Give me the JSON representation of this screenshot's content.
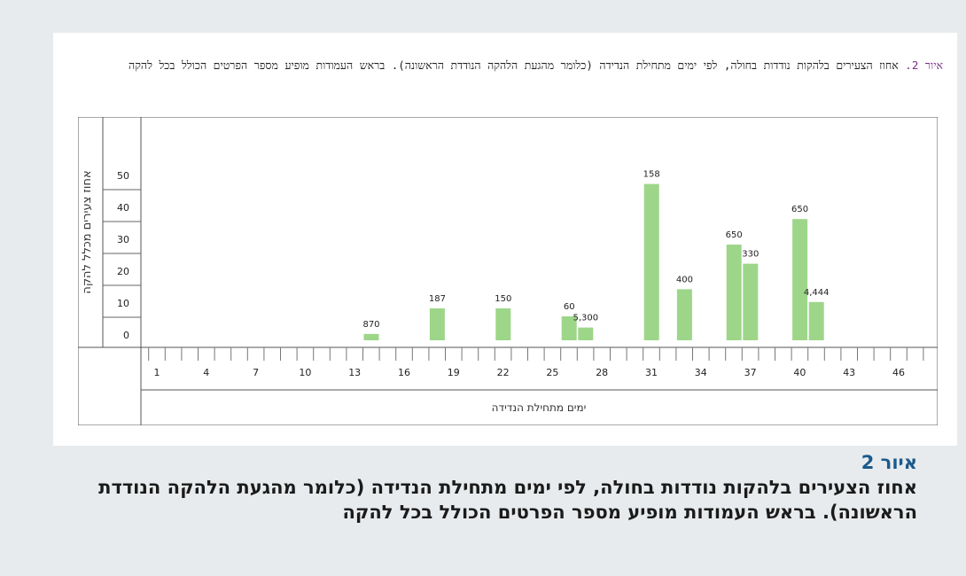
{
  "inner_caption": {
    "label": "איור 2.",
    "text": " אחוז הצעירים בלהקות נודדות בחולה, לפי ימים מתחילת הנדידה (כלומר מהגעת הלהקה הנודדת הראשונה). בראש העמודות מופיע מספר הפרטים הכולל בכל להקה"
  },
  "main_caption": {
    "label": "איור 2",
    "text": "אחוז הצעירים בלהקות נודדות בחולה, לפי ימים מתחילת הנדידה (כלומר מהגעת הלהקה הנודדת הראשונה). בראש העמודות מופיע מספר הפרטים הכולל בכל להקה"
  },
  "chart_data": {
    "type": "bar",
    "ylabel": "אחוז צעירים מכלל להקה",
    "xlabel": "ימים מתחילת הנדידה",
    "ylim": [
      0,
      50
    ],
    "yticks": [
      0,
      10,
      20,
      30,
      40,
      50
    ],
    "xlim": [
      0,
      48
    ],
    "xticks": [
      1,
      4,
      7,
      10,
      13,
      16,
      19,
      22,
      25,
      28,
      31,
      34,
      37,
      40,
      43,
      46
    ],
    "bars": [
      {
        "x": 14,
        "y": 2,
        "label": "870"
      },
      {
        "x": 18,
        "y": 10,
        "label": "187"
      },
      {
        "x": 22,
        "y": 10,
        "label": "150"
      },
      {
        "x": 26,
        "y": 7.5,
        "label": "60"
      },
      {
        "x": 27,
        "y": 4,
        "label": "5,300"
      },
      {
        "x": 31,
        "y": 49,
        "label": "158"
      },
      {
        "x": 33,
        "y": 16,
        "label": "400"
      },
      {
        "x": 36,
        "y": 30,
        "label": "650"
      },
      {
        "x": 37,
        "y": 24,
        "label": "330"
      },
      {
        "x": 40,
        "y": 38,
        "label": "650"
      },
      {
        "x": 41,
        "y": 12,
        "label": "4,444"
      }
    ],
    "bar_color": "#9dd689",
    "grid": false
  }
}
